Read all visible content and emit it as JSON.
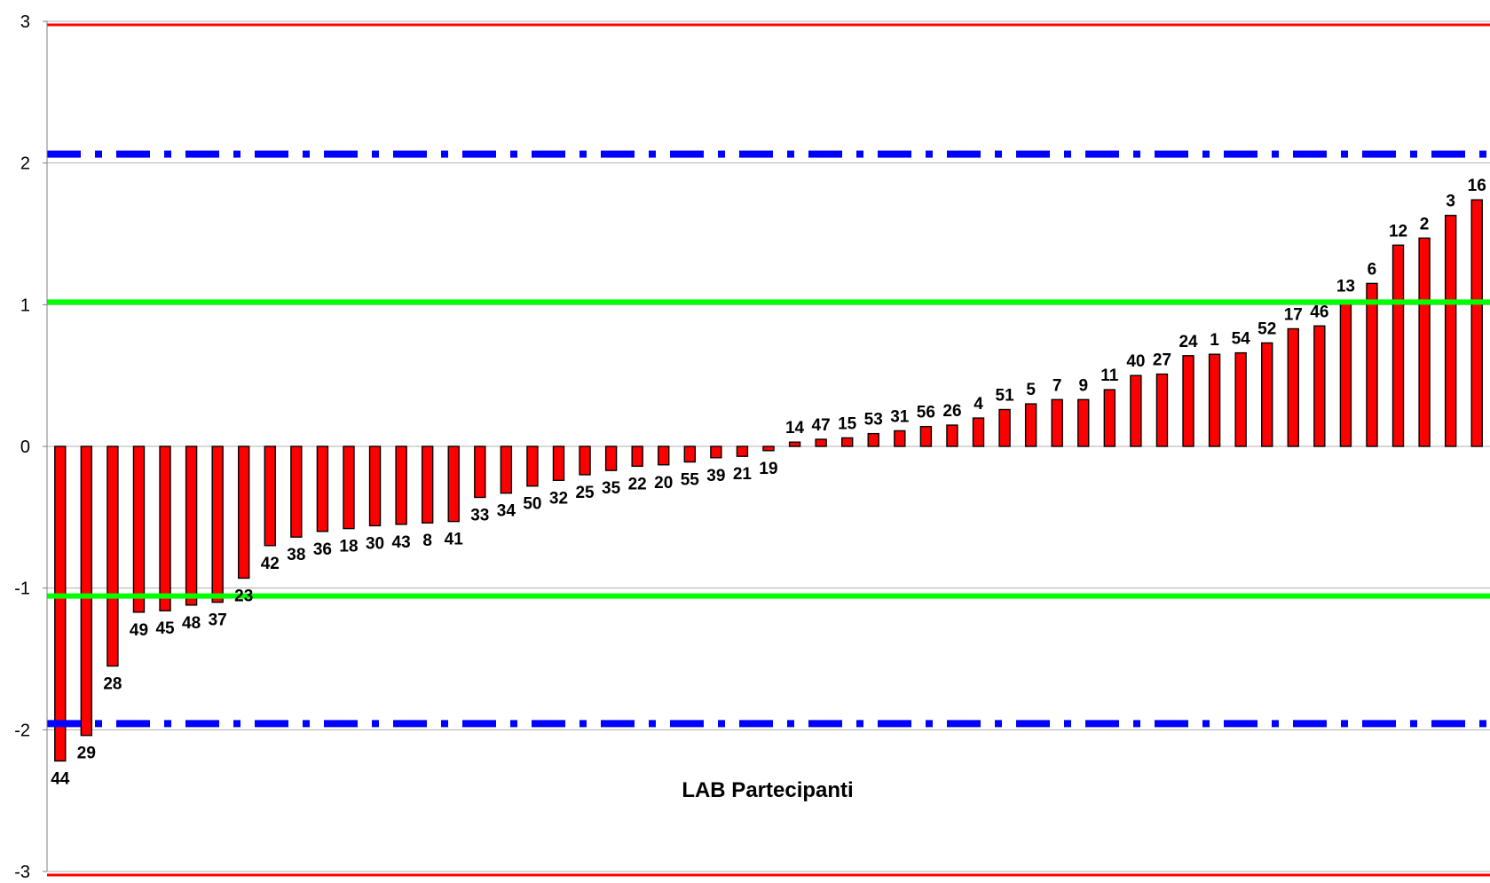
{
  "chart_data": {
    "type": "bar",
    "xlabel": "LAB Partecipanti",
    "ylim": [
      -3,
      3
    ],
    "yticks": [
      3,
      2,
      1,
      0,
      -1,
      -2,
      -3
    ],
    "grid": true,
    "categories": [
      "44",
      "29",
      "28",
      "49",
      "45",
      "48",
      "37",
      "23",
      "42",
      "38",
      "36",
      "18",
      "30",
      "43",
      "8",
      "41",
      "33",
      "34",
      "50",
      "32",
      "25",
      "35",
      "22",
      "20",
      "55",
      "39",
      "21",
      "19",
      "14",
      "47",
      "15",
      "53",
      "31",
      "56",
      "26",
      "4",
      "51",
      "5",
      "7",
      "9",
      "11",
      "40",
      "27",
      "24",
      "1",
      "54",
      "52",
      "17",
      "46",
      "13",
      "6",
      "12",
      "2",
      "3",
      "16"
    ],
    "values": [
      -2.22,
      -2.04,
      -1.55,
      -1.17,
      -1.16,
      -1.12,
      -1.1,
      -0.93,
      -0.7,
      -0.64,
      -0.6,
      -0.58,
      -0.56,
      -0.55,
      -0.54,
      -0.53,
      -0.36,
      -0.33,
      -0.28,
      -0.24,
      -0.2,
      -0.17,
      -0.14,
      -0.13,
      -0.11,
      -0.08,
      -0.07,
      -0.03,
      0.03,
      0.05,
      0.06,
      0.09,
      0.11,
      0.14,
      0.15,
      0.2,
      0.26,
      0.3,
      0.33,
      0.33,
      0.4,
      0.5,
      0.51,
      0.64,
      0.65,
      0.66,
      0.73,
      0.83,
      0.85,
      1.03,
      1.15,
      1.42,
      1.47,
      1.63,
      1.74
    ],
    "bar_color": "#ff0000",
    "bar_outline": "#000000",
    "reference_lines": [
      {
        "kind": "upper-action-limit",
        "y": 3,
        "color": "#ff0000",
        "style": "solid"
      },
      {
        "kind": "upper-warning-limit",
        "y": 2,
        "color": "#0000ff",
        "style": "dash-dot"
      },
      {
        "kind": "upper-green-limit",
        "y": 1,
        "color": "#00ff00",
        "style": "solid"
      },
      {
        "kind": "lower-green-limit",
        "y": -1,
        "color": "#00ff00",
        "style": "solid"
      },
      {
        "kind": "lower-warning-limit",
        "y": -2,
        "color": "#0000ff",
        "style": "dash-dot"
      },
      {
        "kind": "lower-action-limit",
        "y": -3,
        "color": "#ff0000",
        "style": "solid"
      }
    ]
  }
}
